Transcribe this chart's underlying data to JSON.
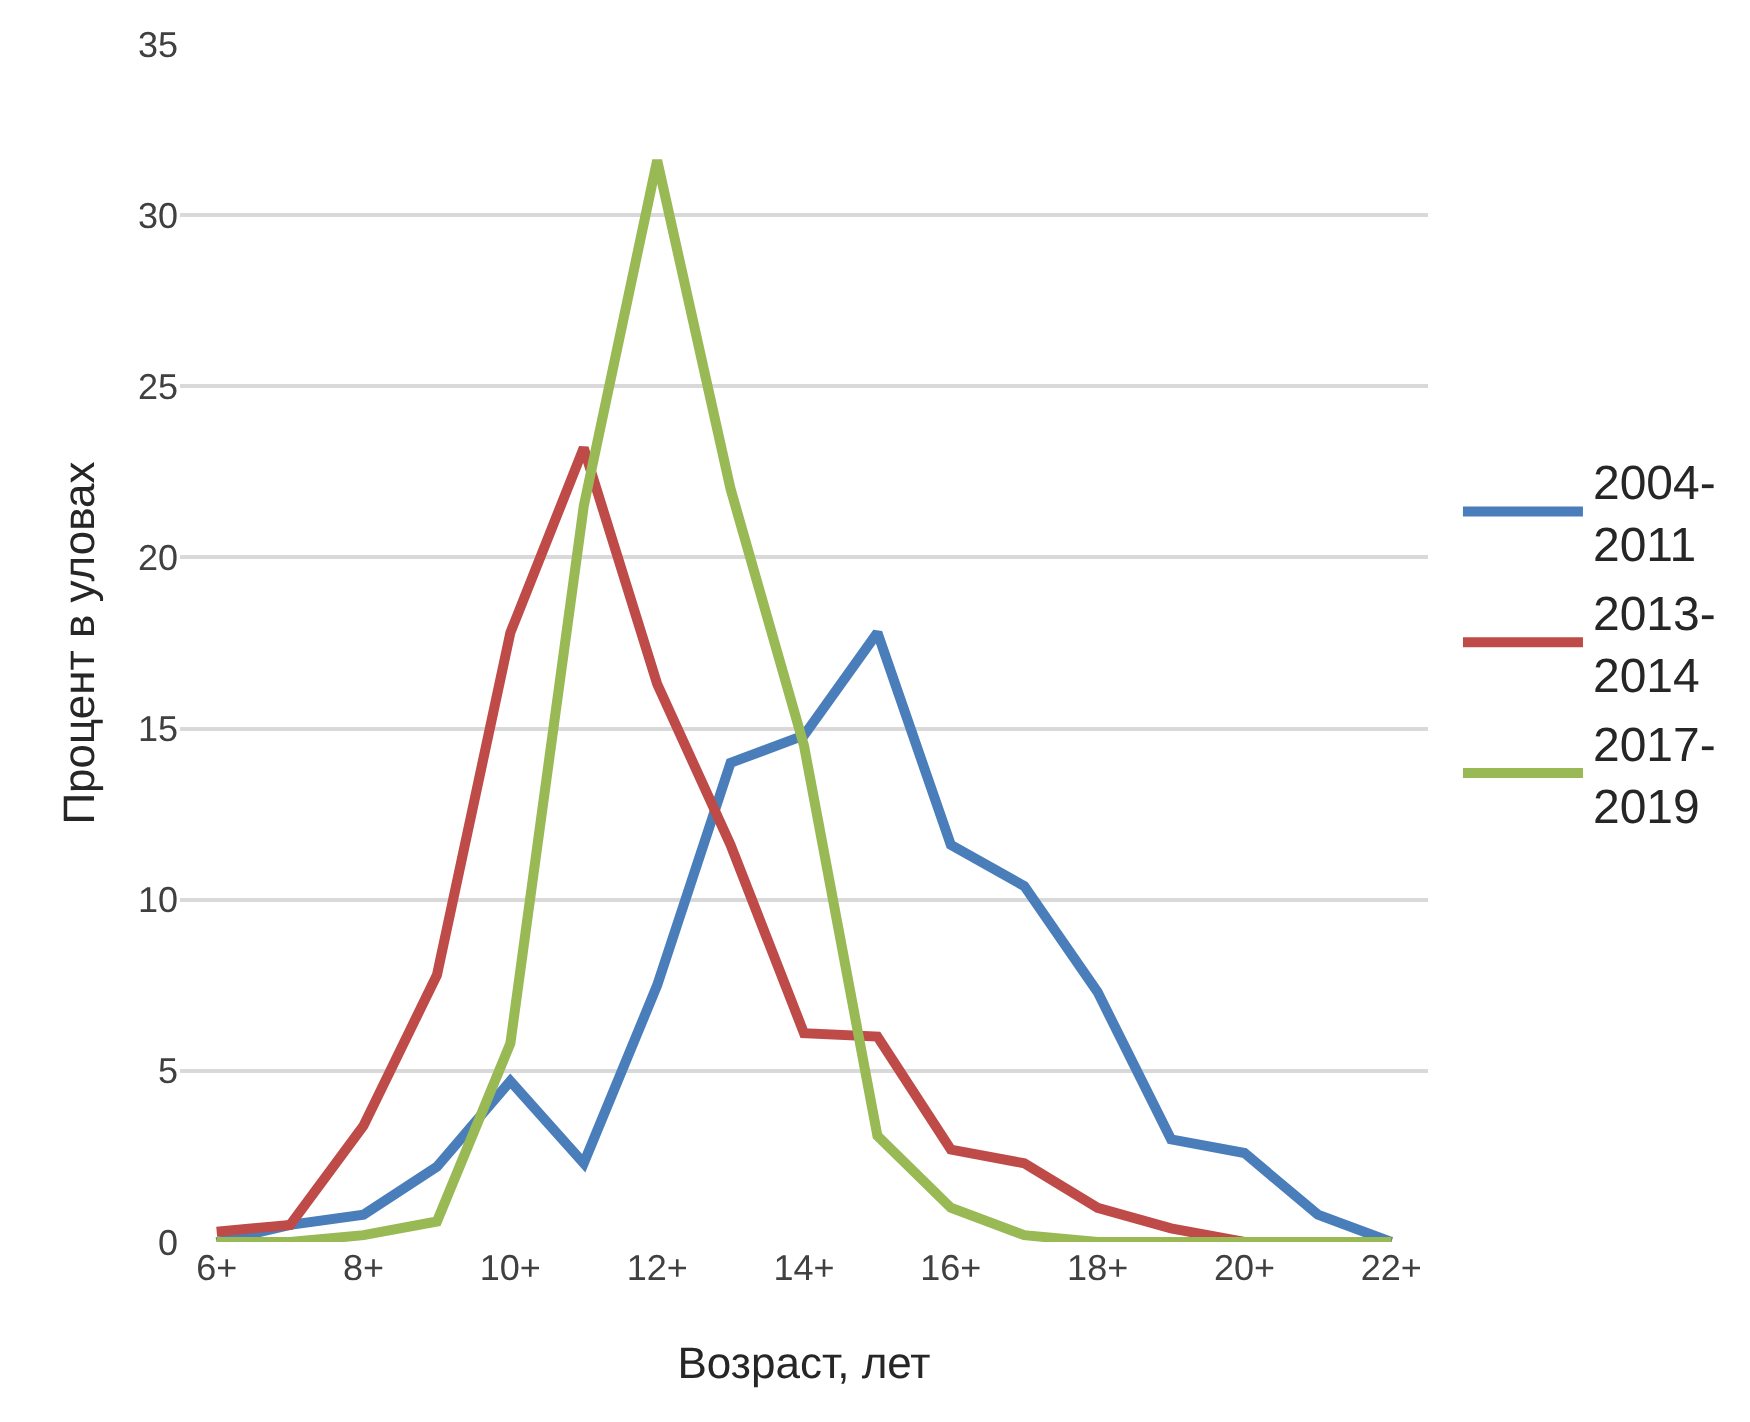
{
  "chart_data": {
    "type": "line",
    "xlabel": "Возраст, лет",
    "ylabel": "Процент в уловах",
    "categories": [
      "6+",
      null,
      "8+",
      null,
      "10+",
      null,
      "12+",
      null,
      "14+",
      null,
      "16+",
      null,
      "18+",
      null,
      "20+",
      null,
      "22+"
    ],
    "series": [
      {
        "name": "2004-2011",
        "color": "#4a7ebb",
        "values": [
          0,
          0.5,
          0.8,
          2.2,
          4.7,
          2.3,
          7.5,
          14.0,
          14.8,
          17.8,
          11.6,
          10.4,
          7.3,
          3.0,
          2.6,
          0.8,
          0
        ]
      },
      {
        "name": "2013-2014",
        "color": "#be4b48",
        "values": [
          0.3,
          0.5,
          3.4,
          7.8,
          17.8,
          23.2,
          16.3,
          11.6,
          6.1,
          6.0,
          2.7,
          2.3,
          1.0,
          0.4,
          0,
          0,
          0
        ]
      },
      {
        "name": "2017-2019",
        "color": "#98b954",
        "values": [
          0,
          0,
          0.2,
          0.6,
          5.8,
          21.5,
          31.6,
          22.0,
          14.5,
          3.1,
          1.0,
          0.2,
          0,
          0,
          0,
          0,
          0
        ]
      }
    ],
    "ylim": [
      0,
      35
    ],
    "yticks": [
      0,
      5,
      10,
      15,
      20,
      25,
      30,
      35
    ],
    "grid": "y",
    "legend": "right",
    "marker": "none",
    "line_style": "solid"
  }
}
